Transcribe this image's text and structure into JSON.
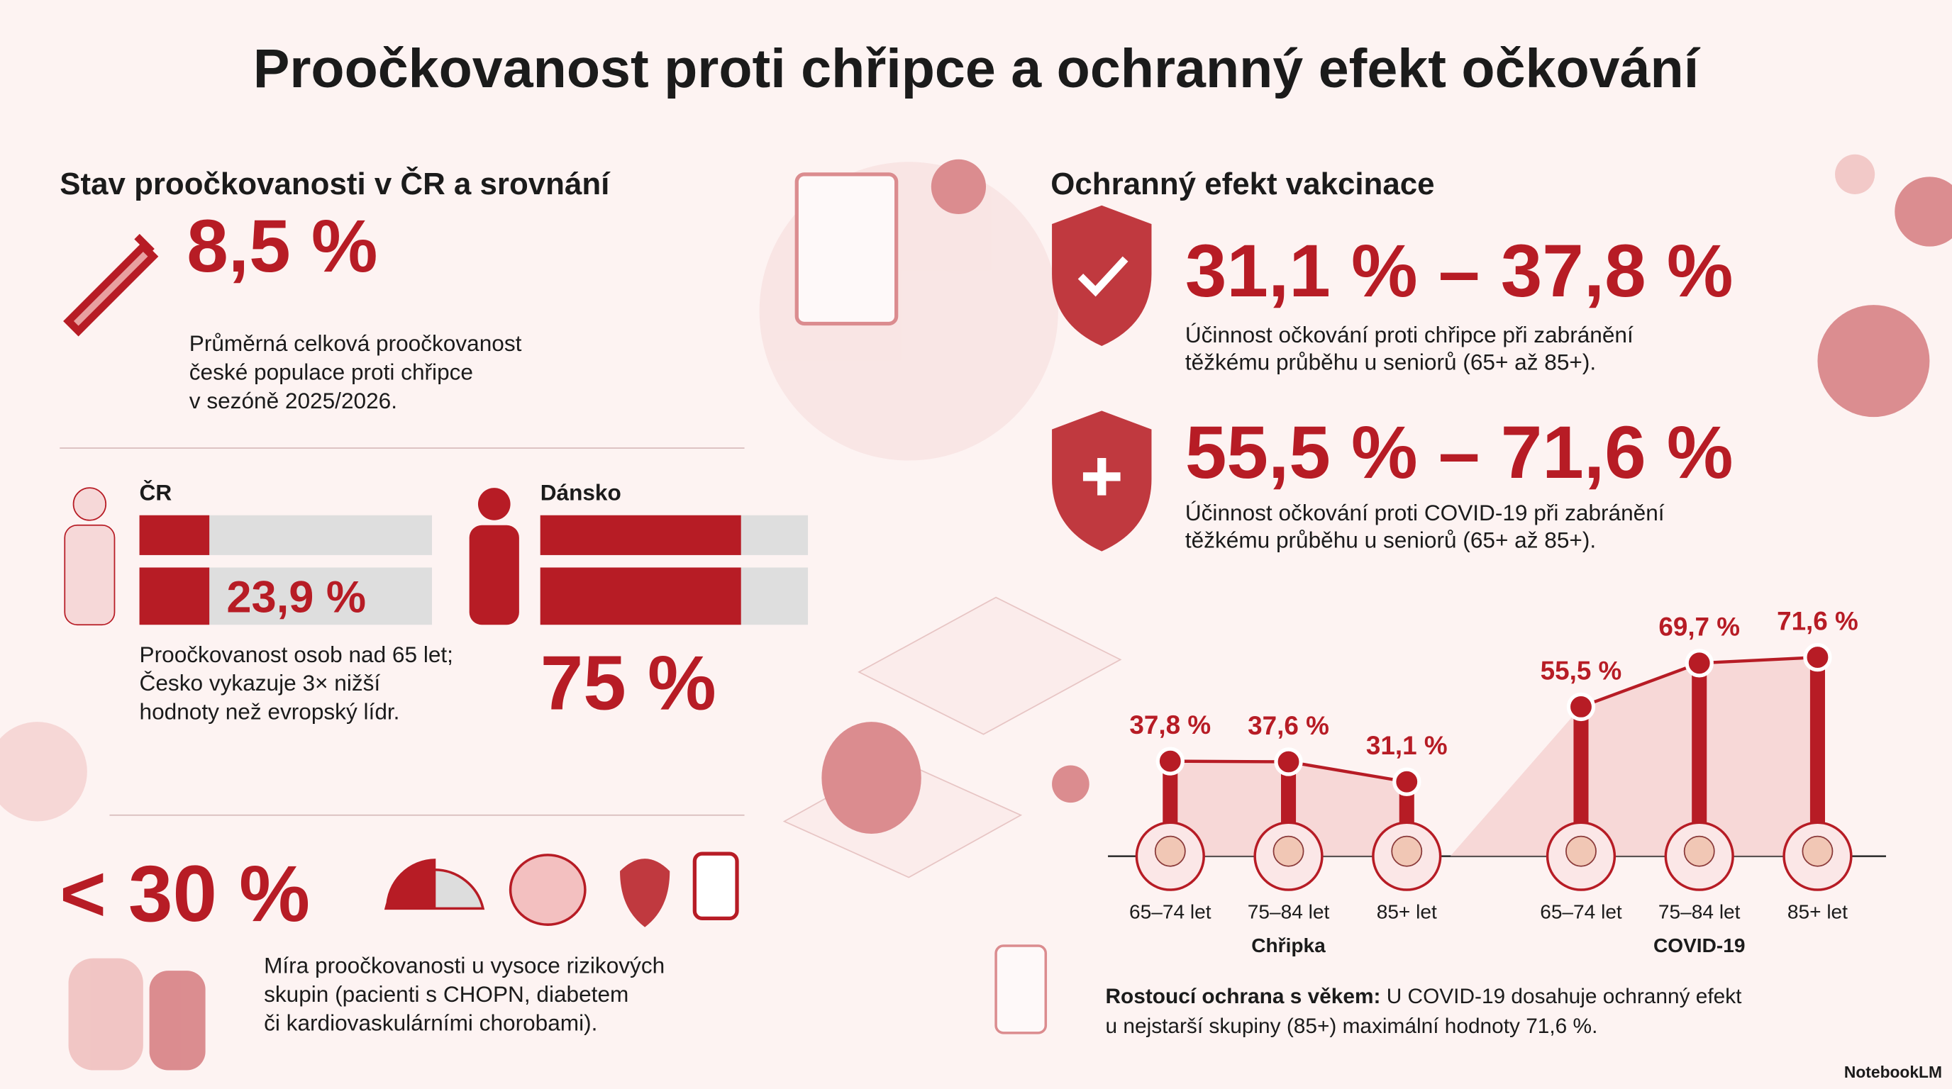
{
  "title": "Proočkovanost proti chřipce a ochranný efekt očkování",
  "left": {
    "heading": "Stav proočkovanosti v ČR a srovnání",
    "overall": {
      "value_label": "8,5 %",
      "text": [
        "Průměrná celková proočkovanost",
        "české populace proti chřipce",
        "v sezóně 2025/2026."
      ]
    },
    "comparison": {
      "cz": {
        "label": "ČR",
        "value": 23.9,
        "value_label": "23,9 %"
      },
      "dk": {
        "label": "Dánsko",
        "value": 75,
        "value_label": "75 %"
      },
      "text": [
        "Proočkovanost osob nad 65 let;",
        "Česko vykazuje 3× nižší",
        "hodnoty než evropský lídr."
      ]
    },
    "risk": {
      "value_label": "< 30 %",
      "text": [
        "Míra proočkovanosti u vysoce rizikových",
        "skupin (pacienti s CHOPN, diabetem",
        "či kardiovaskulárními chorobami)."
      ]
    }
  },
  "right": {
    "heading": "Ochranný efekt vakcinace",
    "influenza": {
      "range": "31,1 % – 37,8 %",
      "text": [
        "Účinnost očkování proti chřipce při zabránění",
        "těžkému průběhu u seniorů (65+ až 85+)."
      ]
    },
    "covid": {
      "range": "55,5 % – 71,6 %",
      "text": [
        "Účinnost očkování proti COVID-19 při zabránění",
        "těžkému průběhu u seniorů (65+ až 85+)."
      ]
    }
  },
  "chart_data": {
    "type": "lollipop",
    "color": "#b71c25",
    "groups": [
      {
        "name": "Chřipka",
        "categories": [
          "65–74 let",
          "75–84 let",
          "85+ let"
        ],
        "values": [
          37.8,
          37.6,
          31.1
        ],
        "value_labels": [
          "37,8 %",
          "37,6 %",
          "31,1 %"
        ]
      },
      {
        "name": "COVID-19",
        "categories": [
          "65–74 let",
          "75–84 let",
          "85+ let"
        ],
        "values": [
          55.5,
          69.7,
          71.6
        ],
        "value_labels": [
          "55,5 %",
          "69,7 %",
          "71,6 %"
        ]
      }
    ]
  },
  "note": {
    "bold": "Rostoucí ochrana s věkem:",
    "text": [
      "U COVID-19 dosahuje ochranný efekt",
      "u nejstarší skupiny (85+) maximální hodnoty 71,6 %."
    ]
  },
  "footer": "NotebookLM"
}
